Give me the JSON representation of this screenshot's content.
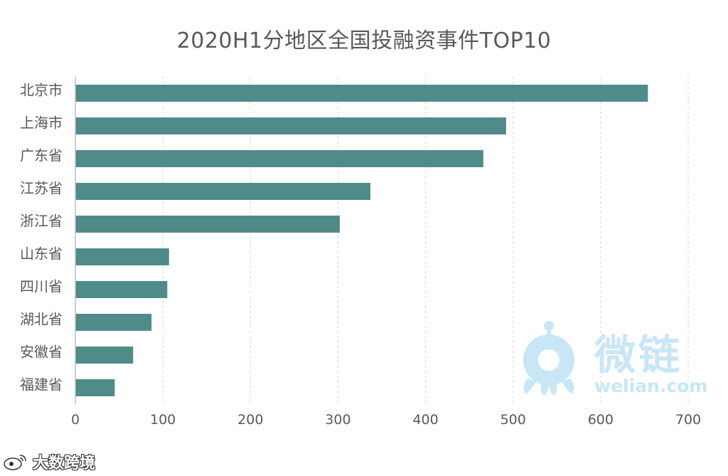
{
  "chart_data": {
    "type": "bar",
    "orientation": "horizontal",
    "title": "2020H1分地区全国投融资事件TOP10",
    "categories": [
      "北京市",
      "上海市",
      "广东省",
      "江苏省",
      "浙江省",
      "山东省",
      "四川省",
      "湖北省",
      "安徽省",
      "福建省"
    ],
    "values": [
      654,
      492,
      466,
      337,
      302,
      107,
      105,
      87,
      66,
      45
    ],
    "xlim": [
      0,
      700
    ],
    "xticks": [
      "0",
      "100",
      "200",
      "300",
      "400",
      "500",
      "600",
      "700"
    ],
    "xlabel": "",
    "ylabel": "",
    "grid": true,
    "bar_color": "#4e8b89"
  },
  "watermarks": {
    "weilian_text": "微链",
    "weilian_url": "welian.com",
    "dsk_text": "大数跨境"
  }
}
